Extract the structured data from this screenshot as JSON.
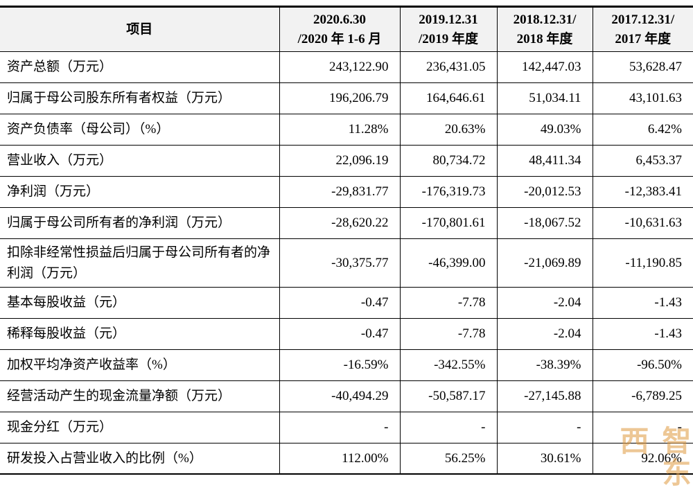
{
  "table": {
    "header": {
      "item": "项目",
      "periods": [
        {
          "line1": "2020.6.30",
          "line2": "/2020 年 1-6 月"
        },
        {
          "line1": "2019.12.31",
          "line2": "/2019 年度"
        },
        {
          "line1": "2018.12.31/",
          "line2": "2018 年度"
        },
        {
          "line1": "2017.12.31/",
          "line2": "2017 年度"
        }
      ]
    },
    "rows": [
      {
        "label": "资产总额（万元）",
        "values": [
          "243,122.90",
          "236,431.05",
          "142,447.03",
          "53,628.47"
        ]
      },
      {
        "label": "归属于母公司股东所有者权益（万元）",
        "values": [
          "196,206.79",
          "164,646.61",
          "51,034.11",
          "43,101.63"
        ]
      },
      {
        "label": "资产负债率（母公司）（%）",
        "values": [
          "11.28%",
          "20.63%",
          "49.03%",
          "6.42%"
        ]
      },
      {
        "label": "营业收入（万元）",
        "values": [
          "22,096.19",
          "80,734.72",
          "48,411.34",
          "6,453.37"
        ]
      },
      {
        "label": "净利润（万元）",
        "values": [
          "-29,831.77",
          "-176,319.73",
          "-20,012.53",
          "-12,383.41"
        ]
      },
      {
        "label": "归属于母公司所有者的净利润（万元）",
        "values": [
          "-28,620.22",
          "-170,801.61",
          "-18,067.52",
          "-10,631.63"
        ]
      },
      {
        "label": "扣除非经常性损益后归属于母公司所有者的净利润（万元）",
        "values": [
          "-30,375.77",
          "-46,399.00",
          "-21,069.89",
          "-11,190.85"
        ]
      },
      {
        "label": "基本每股收益（元）",
        "values": [
          "-0.47",
          "-7.78",
          "-2.04",
          "-1.43"
        ]
      },
      {
        "label": "稀释每股收益（元）",
        "values": [
          "-0.47",
          "-7.78",
          "-2.04",
          "-1.43"
        ]
      },
      {
        "label": "加权平均净资产收益率（%）",
        "values": [
          "-16.59%",
          "-342.55%",
          "-38.39%",
          "-96.50%"
        ]
      },
      {
        "label": "经营活动产生的现金流量净额（万元）",
        "values": [
          "-40,494.29",
          "-50,587.17",
          "-27,145.88",
          "-6,789.25"
        ]
      },
      {
        "label": "现金分红（万元）",
        "values": [
          "-",
          "-",
          "-",
          "-"
        ]
      },
      {
        "label": "研发投入占营业收入的比例（%）",
        "values": [
          "112.00%",
          "56.25%",
          "30.61%",
          "92.06%"
        ]
      }
    ]
  },
  "watermark": {
    "text": "智东西",
    "color": "#e09a40"
  }
}
